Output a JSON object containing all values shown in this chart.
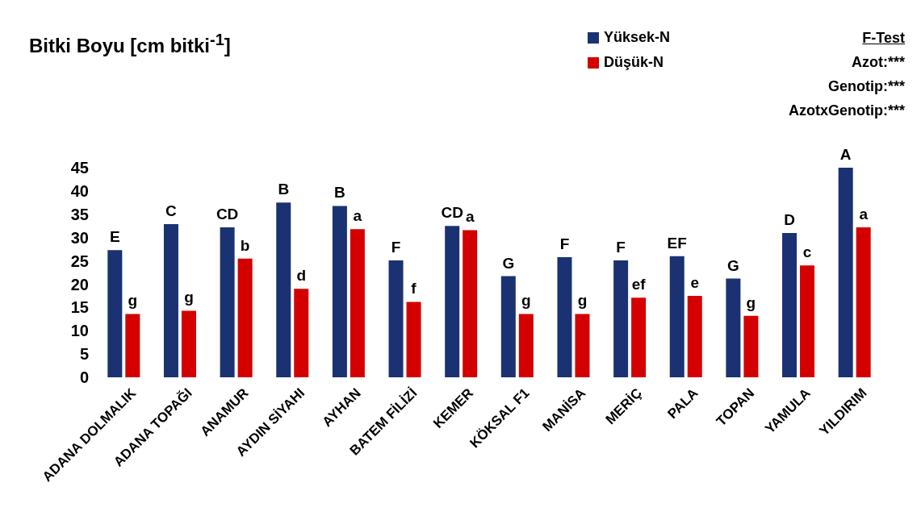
{
  "chart_data": {
    "type": "bar",
    "title": "Bitki Boyu [cm bitki$^{-1}$]",
    "categories": [
      "ADANA DOLMALIK",
      "ADANA TOPAĞI",
      "ANAMUR",
      "AYDIN SİYAHI",
      "AYHAN",
      "BATEM FİLİZİ",
      "KEMER",
      "KÖKSAL F1",
      "MANİSA",
      "MERİÇ",
      "PALA",
      "TOPAN",
      "YAMULA",
      "YILDIRIM"
    ],
    "series": [
      {
        "name": "Yüksek-N",
        "color": "#1a3272",
        "values": [
          27.3,
          32.9,
          32.2,
          37.5,
          36.8,
          25.1,
          32.5,
          21.7,
          25.8,
          25.1,
          26,
          21.2,
          31,
          45
        ],
        "value_labels": [
          "E",
          "C",
          "CD",
          "B",
          "B",
          "F",
          "CD",
          "G",
          "F",
          "F",
          "EF",
          "G",
          "D",
          "A"
        ]
      },
      {
        "name": "Düşük-N",
        "color": "#d40000",
        "values": [
          13.6,
          14.3,
          25.5,
          19,
          31.8,
          16.2,
          31.6,
          13.6,
          13.6,
          17.1,
          17.5,
          13.2,
          24,
          32.2
        ],
        "value_labels": [
          "g",
          "g",
          "b",
          "d",
          "a",
          "f",
          "a",
          "g",
          "g",
          "ef",
          "e",
          "g",
          "c",
          "a"
        ]
      }
    ],
    "ylim": [
      0,
      45
    ],
    "yticks": [
      0,
      5,
      10,
      15,
      20,
      25,
      30,
      35,
      40,
      45
    ],
    "grid": false,
    "legend": "top right",
    "annotations": [
      "F-Test",
      "Azot:***",
      "Genotip:***",
      "AzotxGenotip:***"
    ]
  }
}
